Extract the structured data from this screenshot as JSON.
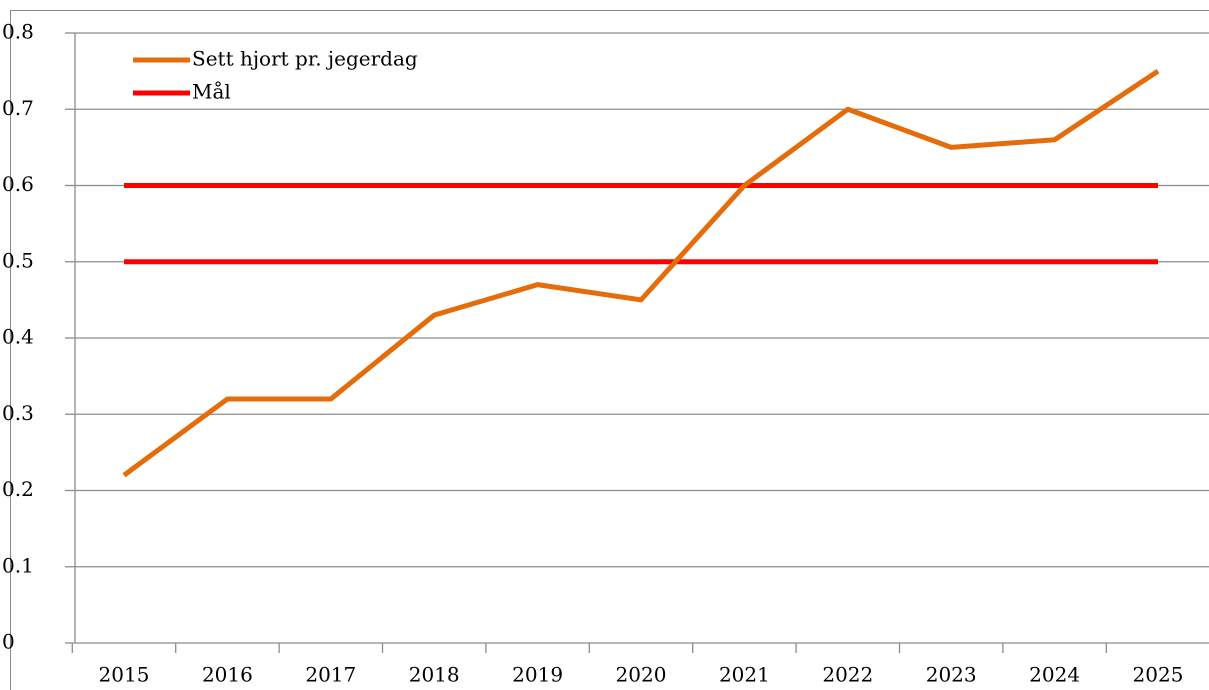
{
  "chart_data": {
    "type": "line",
    "categories": [
      "2015",
      "2016",
      "2017",
      "2018",
      "2019",
      "2020",
      "2021",
      "2022",
      "2023",
      "2024",
      "2025"
    ],
    "series": [
      {
        "name": "Sett hjort pr. jegerdag",
        "color": "#e46c0a",
        "values": [
          0.22,
          0.32,
          0.32,
          0.43,
          0.47,
          0.45,
          0.6,
          0.7,
          0.65,
          0.66,
          0.75
        ]
      },
      {
        "name": "Mål",
        "color": "#ff0000",
        "values": [
          0.6,
          0.6,
          0.6,
          0.6,
          0.6,
          0.6,
          0.6,
          0.6,
          0.6,
          0.6,
          0.6
        ]
      },
      {
        "color": "#ff0000",
        "values": [
          0.5,
          0.5,
          0.5,
          0.5,
          0.5,
          0.5,
          0.5,
          0.5,
          0.5,
          0.5,
          0.5
        ]
      }
    ],
    "ylim": [
      0,
      0.8
    ],
    "yticks": [
      0,
      0.1,
      0.2,
      0.3,
      0.4,
      0.5,
      0.6,
      0.7,
      0.8
    ],
    "grid": true,
    "legend": "top-left"
  }
}
